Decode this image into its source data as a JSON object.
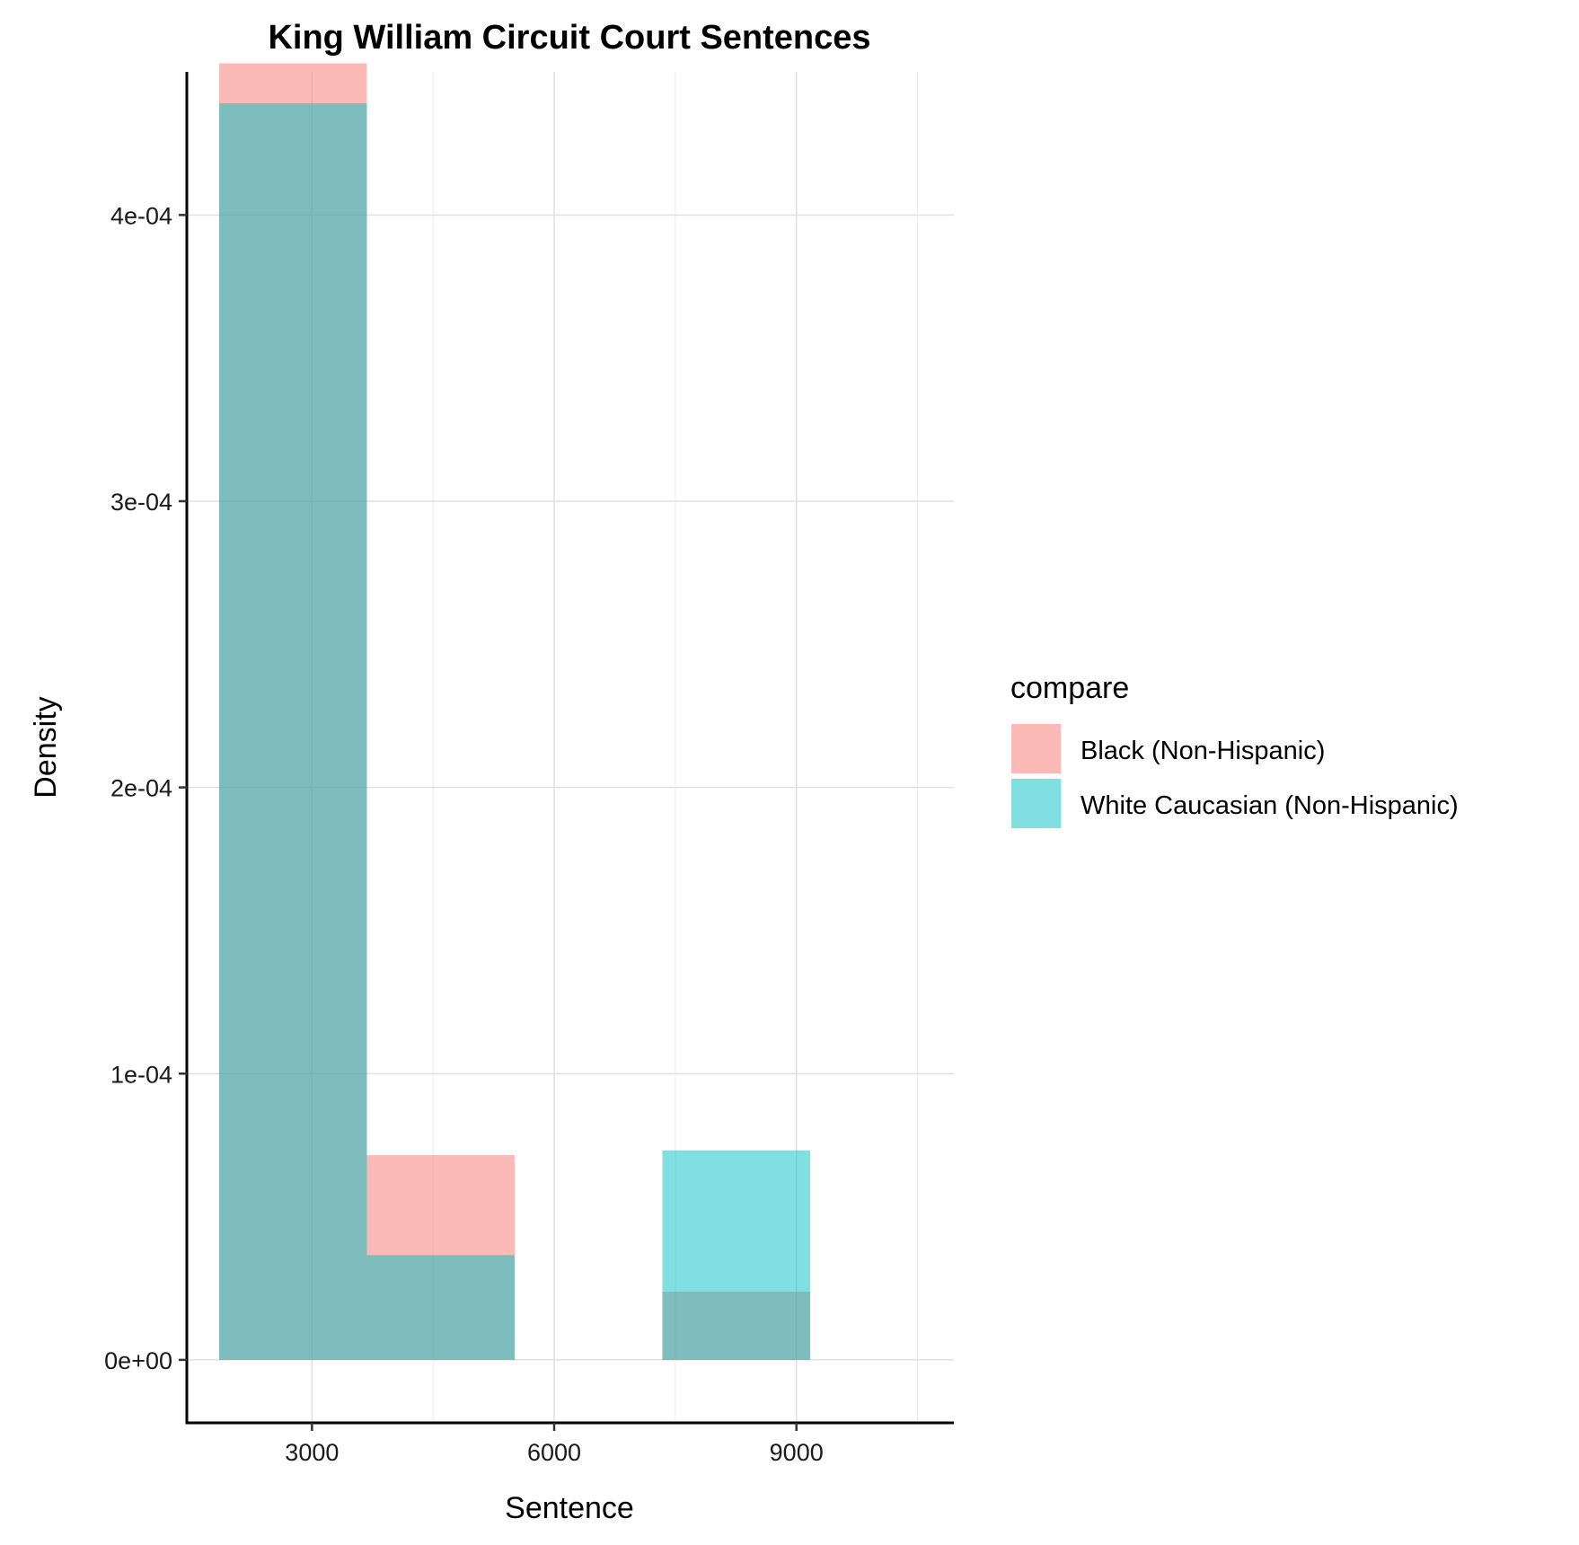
{
  "chart_data": {
    "type": "histogram",
    "title": "King William Circuit Court Sentences",
    "xlabel": "Sentence",
    "ylabel": "Density",
    "xlim": [
      1450,
      10950
    ],
    "ylim": [
      -2.2e-05,
      0.00045
    ],
    "x_ticks": [
      3000,
      6000,
      9000
    ],
    "x_tick_labels": [
      "3000",
      "6000",
      "9000"
    ],
    "x_minor_grid": [
      4500,
      7500,
      10500
    ],
    "y_ticks": [
      0,
      0.0001,
      0.0002,
      0.0003,
      0.0004
    ],
    "y_tick_labels": [
      "0e+00",
      "1e-04",
      "2e-04",
      "3e-04",
      "4e-04"
    ],
    "grid": true,
    "bar_opacity": 0.5,
    "legend": {
      "title": "compare",
      "position": "right",
      "entries": [
        "Black (Non-Hispanic)",
        "White Caucasian (Non-Hispanic)"
      ]
    },
    "series": [
      {
        "name": "Black (Non-Hispanic)",
        "color": "#F8766D",
        "bins": [
          {
            "x0": 1850,
            "x1": 3680,
            "value": 0.000453
          },
          {
            "x0": 3680,
            "x1": 5510,
            "value": 7.15e-05
          },
          {
            "x0": 7340,
            "x1": 9170,
            "value": 2.38e-05
          }
        ]
      },
      {
        "name": "White Caucasian (Non-Hispanic)",
        "color": "#00BFC4",
        "bins": [
          {
            "x0": 1850,
            "x1": 3680,
            "value": 0.000439
          },
          {
            "x0": 3680,
            "x1": 5510,
            "value": 3.66e-05
          },
          {
            "x0": 7340,
            "x1": 9170,
            "value": 7.32e-05
          }
        ]
      }
    ]
  }
}
